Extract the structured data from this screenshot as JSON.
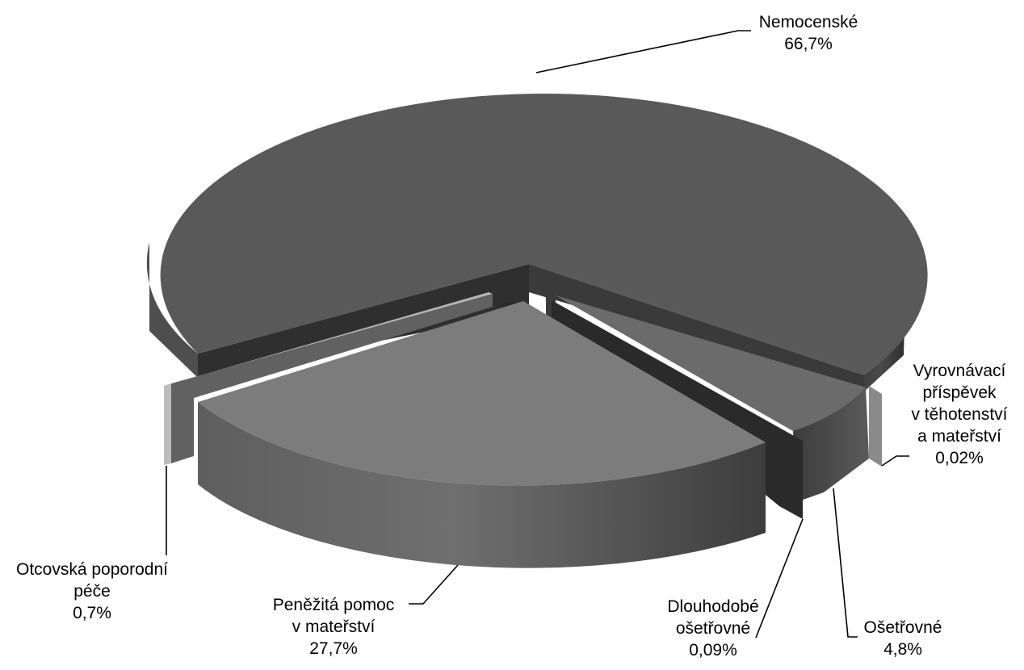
{
  "chart_data": {
    "type": "pie",
    "style": "3d-exploded",
    "title": "",
    "slices": [
      {
        "key": "nemocenske",
        "label_lines": [
          "Nemocenské"
        ],
        "percent_text": "66,7%",
        "value": 66.7,
        "color": "#595959"
      },
      {
        "key": "vyrovnavaci",
        "label_lines": [
          "Vyrovnávací",
          "příspěvek",
          "v těhotenství",
          "a mateřství"
        ],
        "percent_text": "0,02%",
        "value": 0.02,
        "color": "#8a8a8a"
      },
      {
        "key": "osetrovne",
        "label_lines": [
          "Ošetřovné"
        ],
        "percent_text": "4,8%",
        "value": 4.8,
        "color": "#6b6b6b"
      },
      {
        "key": "dlouhodobe",
        "label_lines": [
          "Dlouhodobé",
          "ošetřovné"
        ],
        "percent_text": "0,09%",
        "value": 0.09,
        "color": "#2a2a2a"
      },
      {
        "key": "penezita",
        "label_lines": [
          "Peněžitá pomoc",
          "v mateřství"
        ],
        "percent_text": "27,7%",
        "value": 27.7,
        "color": "#7c7c7c"
      },
      {
        "key": "otcovska",
        "label_lines": [
          "Otcovská poporodní",
          "péče"
        ],
        "percent_text": "0,7%",
        "value": 0.7,
        "color": "#b5b5b5"
      }
    ],
    "legend": "none"
  }
}
